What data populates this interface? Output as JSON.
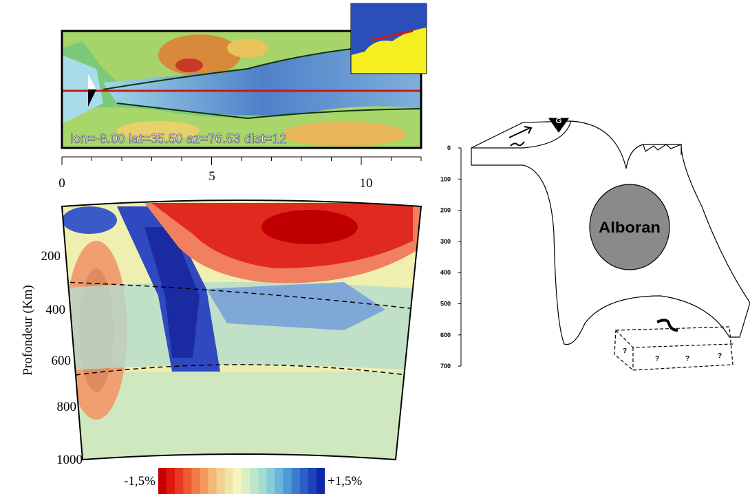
{
  "map": {
    "label": "lon=-8.00 lat=35.50 az=76.53 dist=12"
  },
  "section": {
    "x_axis_labels": [
      "0",
      "5",
      "10"
    ],
    "depth_labels": [
      "200",
      "400",
      "600",
      "800",
      "1000"
    ],
    "axis_title": "Profondeur (Km)"
  },
  "colorbar": {
    "min_label": "-1,5%",
    "max_label": "+1,5%"
  },
  "schematic": {
    "depth_labels": [
      "0",
      "100",
      "200",
      "300",
      "400",
      "500",
      "600",
      "700"
    ],
    "station": "G",
    "region": "Alboran",
    "unknowns": [
      "?",
      "?",
      "?",
      "?"
    ]
  }
}
